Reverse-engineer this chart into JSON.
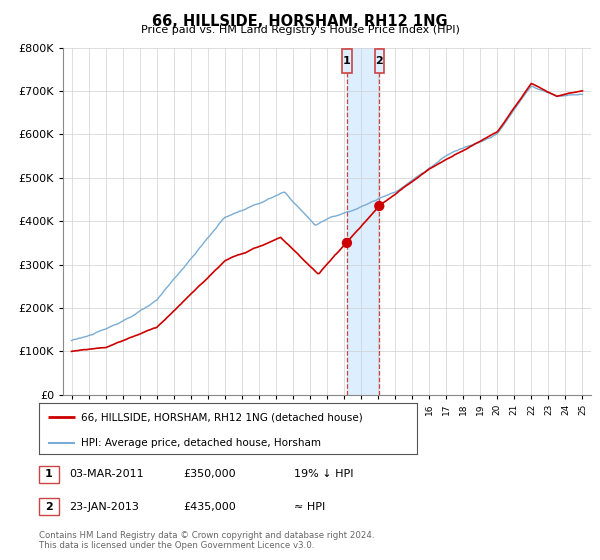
{
  "title": "66, HILLSIDE, HORSHAM, RH12 1NG",
  "subtitle": "Price paid vs. HM Land Registry's House Price Index (HPI)",
  "legend_line1": "66, HILLSIDE, HORSHAM, RH12 1NG (detached house)",
  "legend_line2": "HPI: Average price, detached house, Horsham",
  "sale1_date": "03-MAR-2011",
  "sale1_price": "£350,000",
  "sale1_hpi": "19% ↓ HPI",
  "sale2_date": "23-JAN-2013",
  "sale2_price": "£435,000",
  "sale2_hpi": "≈ HPI",
  "footer": "Contains HM Land Registry data © Crown copyright and database right 2024.\nThis data is licensed under the Open Government Licence v3.0.",
  "red_color": "#cc0000",
  "blue_color": "#7aadd4",
  "vline_color": "#cc4444",
  "shade_color": "#ddeeff",
  "ylim": [
    0,
    800000
  ],
  "yticks": [
    0,
    100000,
    200000,
    300000,
    400000,
    500000,
    600000,
    700000,
    800000
  ],
  "sale1_year": 2011.17,
  "sale2_year": 2013.07,
  "sale1_price_val": 350000,
  "sale2_price_val": 435000,
  "xstart": 1995,
  "xend": 2025
}
